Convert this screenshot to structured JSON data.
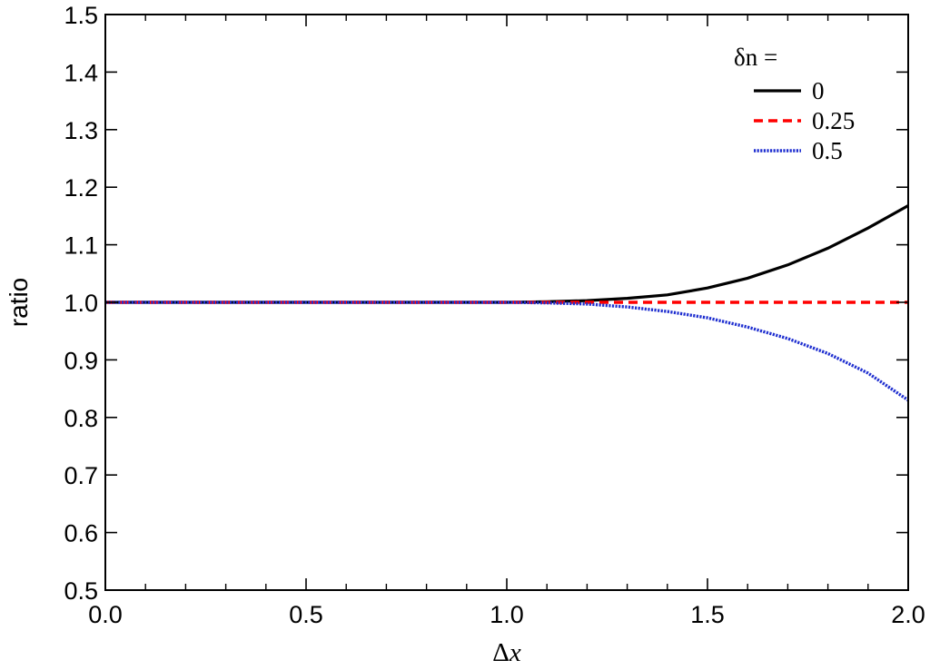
{
  "chart_data": {
    "type": "line",
    "title": "",
    "xlabel_prefix": "Δ",
    "xlabel_var": "x",
    "ylabel": "ratio",
    "xlim": [
      0.0,
      2.0
    ],
    "ylim": [
      0.5,
      1.5
    ],
    "x_ticks": [
      "0.0",
      "0.5",
      "1.0",
      "1.5",
      "2.0"
    ],
    "y_ticks": [
      "0.5",
      "0.6",
      "0.7",
      "0.8",
      "0.9",
      "1.0",
      "1.1",
      "1.2",
      "1.3",
      "1.4",
      "1.5"
    ],
    "x_tick_values": [
      0.0,
      0.5,
      1.0,
      1.5,
      2.0
    ],
    "y_tick_values": [
      0.5,
      0.6,
      0.7,
      0.8,
      0.9,
      1.0,
      1.1,
      1.2,
      1.3,
      1.4,
      1.5
    ],
    "x_minor_step": 0.1,
    "grid": false,
    "legend": {
      "title": "δn =",
      "placement": "top-right"
    },
    "series": [
      {
        "name": "0",
        "color": "#000000",
        "style": "solid",
        "x": [
          0.0,
          0.2,
          0.4,
          0.6,
          0.8,
          1.0,
          1.1,
          1.2,
          1.3,
          1.4,
          1.5,
          1.6,
          1.7,
          1.8,
          1.9,
          2.0
        ],
        "y": [
          1.0,
          1.0,
          1.0,
          1.0,
          1.0,
          1.0,
          1.001,
          1.003,
          1.007,
          1.013,
          1.025,
          1.042,
          1.065,
          1.094,
          1.129,
          1.168
        ]
      },
      {
        "name": "0.25",
        "color": "#ff0000",
        "style": "dashed",
        "x": [
          0.0,
          0.5,
          1.0,
          1.5,
          2.0
        ],
        "y": [
          1.0,
          1.0,
          1.0,
          1.0,
          1.0
        ]
      },
      {
        "name": "0.5",
        "color": "#1f2fd0",
        "style": "dotted",
        "x": [
          0.0,
          0.2,
          0.4,
          0.6,
          0.8,
          1.0,
          1.1,
          1.2,
          1.3,
          1.4,
          1.5,
          1.6,
          1.7,
          1.8,
          1.9,
          2.0
        ],
        "y": [
          1.0,
          1.0,
          1.0,
          1.0,
          1.0,
          1.0,
          0.999,
          0.997,
          0.992,
          0.984,
          0.973,
          0.957,
          0.937,
          0.911,
          0.877,
          0.83
        ]
      }
    ]
  }
}
